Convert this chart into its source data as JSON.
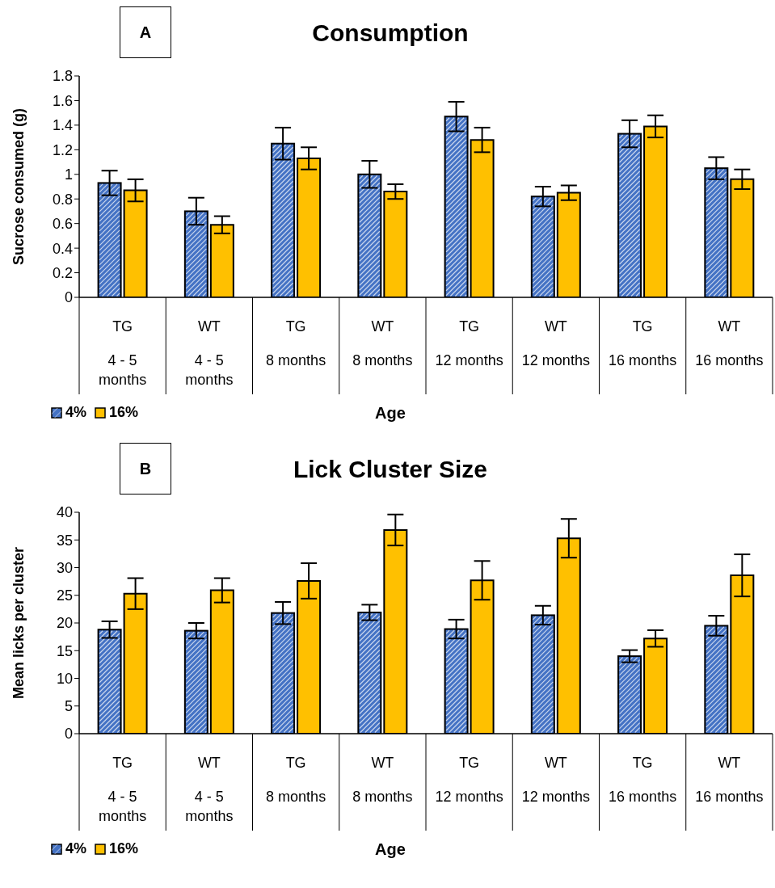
{
  "chart_data": [
    {
      "type": "bar",
      "title": "Consumption",
      "xlabel": "Age",
      "ylabel": "Sucrose consumed (g)",
      "annotations": [
        "A"
      ],
      "categories": [
        "TG\n4 - 5 months",
        "WT\n4 - 5 months",
        "TG\n8 months",
        "WT\n8 months",
        "TG\n12 months",
        "WT\n12 months",
        "TG\n16 months",
        "WT\n16 months"
      ],
      "series": [
        {
          "name": "4%",
          "color": "#4472c4",
          "values": [
            0.93,
            0.7,
            1.25,
            1.0,
            1.47,
            0.82,
            1.33,
            1.05
          ],
          "errors": [
            0.1,
            0.11,
            0.13,
            0.11,
            0.12,
            0.08,
            0.11,
            0.09
          ]
        },
        {
          "name": "16%",
          "color": "#ffc000",
          "values": [
            0.87,
            0.59,
            1.13,
            0.86,
            1.28,
            0.85,
            1.39,
            0.96
          ],
          "errors": [
            0.09,
            0.07,
            0.09,
            0.06,
            0.1,
            0.06,
            0.09,
            0.08
          ]
        }
      ],
      "ylim": [
        0,
        1.8
      ],
      "yticks": [
        0,
        0.2,
        0.4,
        0.6,
        0.8,
        1,
        1.2,
        1.4,
        1.6,
        1.8
      ],
      "grid": false,
      "legend": "bottom left"
    },
    {
      "type": "bar",
      "title": "Lick Cluster Size",
      "xlabel": "Age",
      "ylabel": "Mean licks per cluster",
      "annotations": [
        "B"
      ],
      "categories": [
        "TG\n4 - 5 months",
        "WT\n4 - 5 months",
        "TG\n8 months",
        "WT\n8 months",
        "TG\n12 months",
        "WT\n12 months",
        "TG\n16 months",
        "WT\n16 months"
      ],
      "series": [
        {
          "name": "4%",
          "color": "#4472c4",
          "values": [
            18.8,
            18.6,
            21.8,
            21.9,
            18.9,
            21.4,
            14.0,
            19.5
          ],
          "errors": [
            1.5,
            1.4,
            2,
            1.4,
            1.7,
            1.7,
            1.1,
            1.8
          ]
        },
        {
          "name": "16%",
          "color": "#ffc000",
          "values": [
            25.3,
            25.9,
            27.6,
            36.8,
            27.7,
            35.3,
            17.2,
            28.6
          ],
          "errors": [
            2.8,
            2.2,
            3.2,
            2.8,
            3.5,
            3.5,
            1.5,
            3.8
          ]
        }
      ],
      "ylim": [
        0,
        40
      ],
      "yticks": [
        0,
        5,
        10,
        15,
        20,
        25,
        30,
        35,
        40
      ],
      "grid": false,
      "legend": "bottom left"
    }
  ]
}
